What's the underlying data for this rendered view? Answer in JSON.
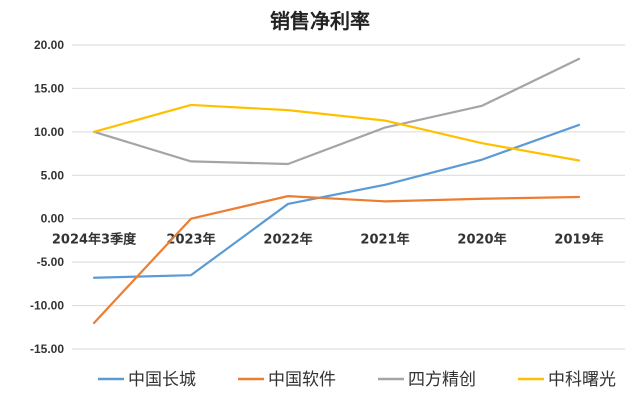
{
  "chart_data": {
    "type": "line",
    "title": "销售净利率",
    "categories": [
      "2024年3季度",
      "2023年",
      "2022年",
      "2021年",
      "2020年",
      "2019年"
    ],
    "ylim": [
      -15,
      20
    ],
    "yticks": [
      "20.00",
      "15.00",
      "10.00",
      "5.00",
      "0.00",
      "-5.00",
      "-10.00",
      "-15.00"
    ],
    "grid": true,
    "legend_position": "bottom",
    "series": [
      {
        "name": "中国长城",
        "color": "#5b9bd5",
        "values": [
          -6.8,
          -6.5,
          1.7,
          3.9,
          6.8,
          10.8
        ]
      },
      {
        "name": "中国软件",
        "color": "#ed7d31",
        "values": [
          -12.0,
          0.0,
          2.6,
          2.0,
          2.3,
          2.5
        ]
      },
      {
        "name": "四方精创",
        "color": "#a5a5a5",
        "values": [
          10.0,
          6.6,
          6.3,
          10.5,
          13.0,
          18.4
        ]
      },
      {
        "name": "中科曙光",
        "color": "#ffc000",
        "values": [
          10.0,
          13.1,
          12.5,
          11.3,
          8.7,
          6.7
        ]
      }
    ]
  }
}
